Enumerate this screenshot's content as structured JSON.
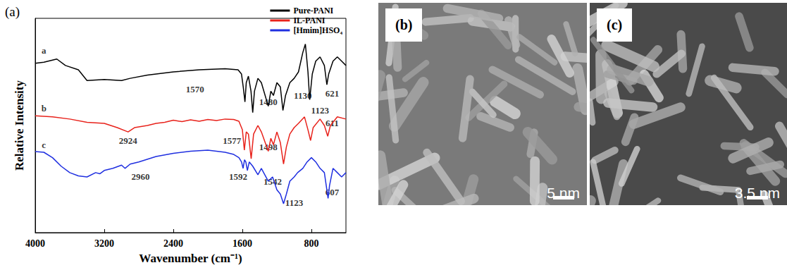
{
  "chart_data": {
    "type": "line",
    "title": "(a)",
    "x_label": "Wavenumber (cm⁻¹)",
    "y_label": "Relative Intensity",
    "xlim": [
      4000,
      400
    ],
    "xticks": [
      4000,
      3200,
      2400,
      1600,
      800
    ],
    "ylim": [
      0,
      100
    ],
    "tick_labels": "x",
    "grid": false,
    "legend": "upper right",
    "series": [
      {
        "name": "Pure-PANI",
        "color": "#000000",
        "x": [
          4000,
          3900,
          3750,
          3650,
          3500,
          3400,
          3200,
          3000,
          2900,
          2700,
          2400,
          2100,
          1800,
          1650,
          1610,
          1590,
          1570,
          1555,
          1530,
          1500,
          1480,
          1460,
          1420,
          1380,
          1300,
          1270,
          1240,
          1200,
          1160,
          1130,
          1100,
          1050,
          1000,
          950,
          900,
          870,
          840,
          820,
          790,
          750,
          700,
          650,
          621,
          600,
          550,
          500,
          450,
          400
        ],
        "values": [
          79,
          79.5,
          81,
          78,
          76,
          71,
          71.5,
          71,
          72,
          73.5,
          75,
          76,
          76.5,
          76,
          74,
          68,
          61,
          70,
          73,
          66,
          56,
          66,
          72,
          70,
          59,
          66,
          64,
          70,
          68,
          57,
          64,
          70,
          72,
          75,
          84,
          88,
          75,
          62,
          74,
          80,
          82,
          78,
          69,
          74,
          80,
          82,
          80,
          78
        ]
      },
      {
        "name": "IL-PANI",
        "color": "#e8221b",
        "x": [
          4000,
          3800,
          3600,
          3400,
          3200,
          3050,
          2924,
          2850,
          2700,
          2600,
          2500,
          2400,
          2300,
          2200,
          2100,
          2000,
          1900,
          1800,
          1700,
          1640,
          1600,
          1577,
          1555,
          1530,
          1498,
          1470,
          1420,
          1380,
          1300,
          1270,
          1240,
          1200,
          1160,
          1123,
          1090,
          1050,
          1000,
          950,
          880,
          840,
          810,
          780,
          700,
          650,
          611,
          580,
          500,
          400
        ],
        "values": [
          54.5,
          54,
          53,
          51.5,
          51,
          49,
          47,
          49,
          50,
          51,
          51.5,
          52.5,
          51.8,
          52.6,
          52,
          52.8,
          52.3,
          53,
          52.8,
          52,
          48,
          38.5,
          47,
          46,
          34.5,
          46,
          50,
          47,
          38,
          44,
          41,
          47,
          42,
          32,
          40,
          46,
          49,
          51,
          54,
          48,
          43,
          49,
          53,
          50,
          45,
          50,
          54,
          53
        ]
      },
      {
        "name": "[Hmim]HSO₄",
        "color": "#1f2fe0",
        "x": [
          4000,
          3900,
          3800,
          3700,
          3600,
          3500,
          3400,
          3300,
          3250,
          3200,
          3100,
          3000,
          2960,
          2900,
          2800,
          2600,
          2400,
          2200,
          2000,
          1800,
          1700,
          1640,
          1610,
          1592,
          1575,
          1560,
          1542,
          1520,
          1480,
          1420,
          1380,
          1300,
          1250,
          1200,
          1160,
          1123,
          1090,
          1050,
          1000,
          960,
          900,
          850,
          800,
          750,
          700,
          650,
          607,
          590,
          550,
          500,
          450,
          400
        ],
        "values": [
          37.8,
          37.5,
          35,
          31,
          28,
          26.5,
          26,
          28,
          27.5,
          29,
          30,
          31.5,
          30,
          32,
          33,
          35.5,
          37,
          38,
          38.5,
          37.5,
          36.5,
          35,
          33,
          30,
          34,
          33,
          29,
          33,
          31,
          27,
          30,
          24,
          26,
          20,
          18,
          13.5,
          18,
          24,
          26,
          28,
          30,
          33,
          35,
          33,
          30,
          28,
          16,
          22,
          30,
          28,
          26,
          28
        ]
      }
    ],
    "annotations": [
      {
        "text": "a",
        "x": 3900,
        "y": 85
      },
      {
        "text": "b",
        "x": 3900,
        "y": 58
      },
      {
        "text": "c",
        "x": 3900,
        "y": 41
      },
      {
        "text": "1570",
        "x": 2150,
        "y": 67
      },
      {
        "text": "1480",
        "x": 1300,
        "y": 61
      },
      {
        "text": "1130",
        "x": 900,
        "y": 64
      },
      {
        "text": "621",
        "x": 560,
        "y": 65
      },
      {
        "text": "2924",
        "x": 2924,
        "y": 43
      },
      {
        "text": "1577",
        "x": 1720,
        "y": 43
      },
      {
        "text": "1498",
        "x": 1300,
        "y": 40
      },
      {
        "text": "611",
        "x": 560,
        "y": 51
      },
      {
        "text": "1123",
        "x": 700,
        "y": 57
      },
      {
        "text": "2960",
        "x": 2780,
        "y": 26
      },
      {
        "text": "1592",
        "x": 1650,
        "y": 26
      },
      {
        "text": "1542",
        "x": 1250,
        "y": 24
      },
      {
        "text": "1123",
        "x": 1000,
        "y": 14
      },
      {
        "text": "607",
        "x": 560,
        "y": 19
      }
    ]
  },
  "panels": [
    {
      "label": "(b)",
      "scale_bar": "5 nm"
    },
    {
      "label": "(c)",
      "scale_bar": "3.5 nm"
    }
  ]
}
